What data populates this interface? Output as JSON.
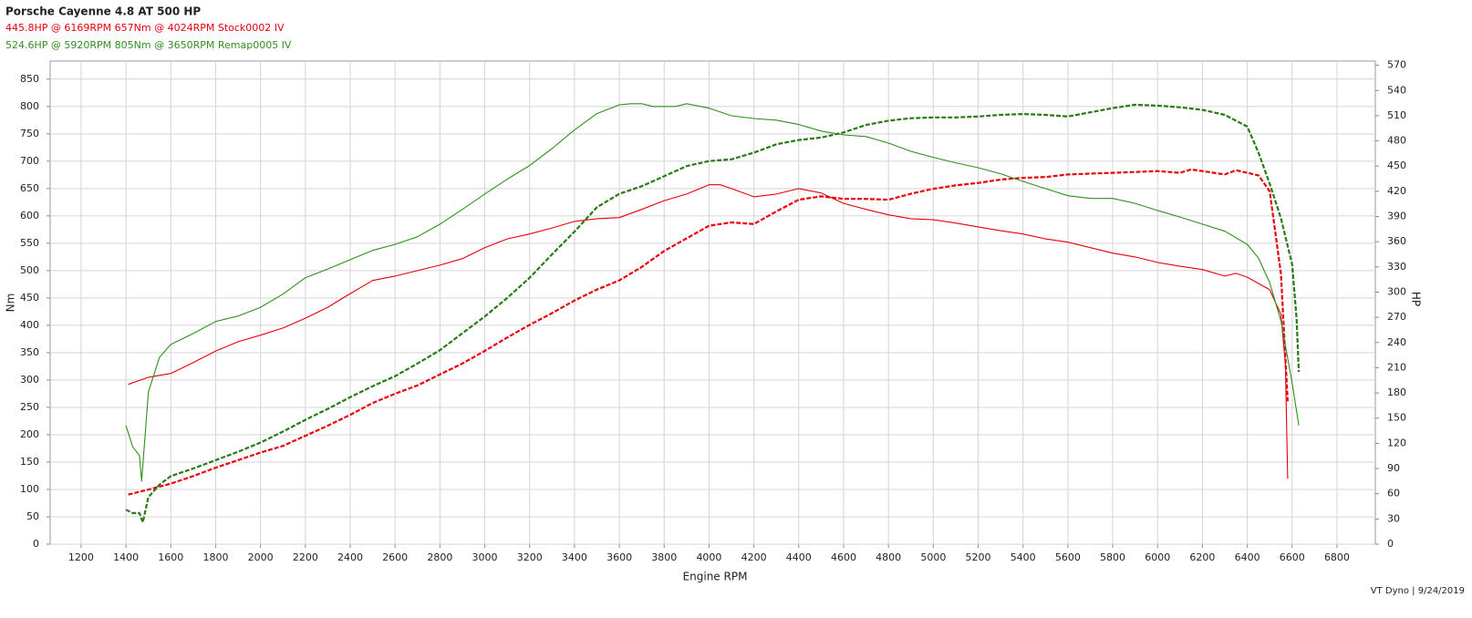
{
  "chart_data": {
    "type": "line",
    "title": "Porsche Cayenne 4.8 AT 500 HP",
    "annotations": [
      {
        "text": "445.8HP @  6169RPM  657Nm @ 4024RPM  Stock0002 IV",
        "color": "#e8000b"
      },
      {
        "text": "524.6HP @  5920RPM  805Nm @ 3650RPM  Remap0005 IV",
        "color": "#2f8f1f"
      }
    ],
    "x_label": "Engine RPM",
    "y_label": "Nm",
    "y2_label": "HP",
    "footer": "VT Dyno | 9/24/2019",
    "grid": true,
    "xlim": [
      1062,
      6971
    ],
    "ylim": [
      0,
      883
    ],
    "y2lim": [
      0,
      575
    ],
    "xticks": [
      1200,
      1400,
      1600,
      1800,
      2000,
      2200,
      2400,
      2600,
      2800,
      3000,
      3200,
      3400,
      3600,
      3800,
      4000,
      4200,
      4400,
      4600,
      4800,
      5000,
      5200,
      5400,
      5600,
      5800,
      6000,
      6200,
      6400,
      6600,
      6800
    ],
    "yticks": [
      0,
      50,
      100,
      150,
      200,
      250,
      300,
      350,
      400,
      450,
      500,
      550,
      600,
      650,
      700,
      750,
      800,
      850
    ],
    "y2ticks": [
      0,
      30,
      60,
      90,
      120,
      150,
      180,
      210,
      240,
      270,
      300,
      330,
      360,
      390,
      420,
      450,
      480,
      510,
      540,
      570
    ],
    "series": [
      {
        "color": "#e8000b",
        "dashed": false,
        "axis": "y",
        "x": [
          1410,
          1500,
          1600,
          1700,
          1800,
          1900,
          2000,
          2100,
          2200,
          2300,
          2400,
          2500,
          2600,
          2700,
          2800,
          2900,
          3000,
          3100,
          3200,
          3300,
          3400,
          3500,
          3600,
          3700,
          3800,
          3900,
          4000,
          4050,
          4100,
          4200,
          4300,
          4400,
          4500,
          4600,
          4700,
          4800,
          4900,
          5000,
          5100,
          5200,
          5300,
          5400,
          5500,
          5600,
          5700,
          5800,
          5900,
          6000,
          6100,
          6200,
          6300,
          6350,
          6400,
          6500,
          6550,
          6570,
          6580
        ],
        "values": [
          292,
          305,
          312,
          332,
          353,
          370,
          382,
          395,
          413,
          433,
          458,
          482,
          490,
          500,
          510,
          522,
          542,
          558,
          567,
          578,
          590,
          595,
          597,
          612,
          628,
          640,
          657,
          657,
          650,
          635,
          640,
          650,
          642,
          623,
          612,
          602,
          595,
          593,
          587,
          580,
          573,
          567,
          558,
          552,
          542,
          532,
          525,
          515,
          508,
          502,
          490,
          495,
          488,
          465,
          420,
          328,
          120
        ]
      },
      {
        "color": "#e8000b",
        "dashed": true,
        "axis": "y2",
        "x": [
          1410,
          1500,
          1600,
          1700,
          1800,
          1900,
          2000,
          2100,
          2200,
          2300,
          2400,
          2500,
          2600,
          2700,
          2800,
          2900,
          3000,
          3100,
          3200,
          3300,
          3400,
          3500,
          3600,
          3700,
          3800,
          3900,
          4000,
          4100,
          4200,
          4300,
          4400,
          4500,
          4600,
          4700,
          4800,
          4900,
          5000,
          5100,
          5200,
          5300,
          5400,
          5500,
          5600,
          5700,
          5800,
          5900,
          6000,
          6100,
          6150,
          6200,
          6300,
          6350,
          6400,
          6450,
          6500,
          6550,
          6580
        ],
        "values": [
          59,
          65,
          72,
          81,
          91,
          100,
          109,
          117,
          129,
          141,
          154,
          168,
          179,
          189,
          202,
          215,
          230,
          246,
          261,
          275,
          290,
          303,
          314,
          330,
          349,
          364,
          379,
          383,
          381,
          396,
          410,
          414,
          411,
          411,
          410,
          417,
          423,
          427,
          430,
          434,
          436,
          437,
          440,
          441,
          442,
          443,
          444,
          442,
          446,
          444,
          440,
          445,
          442,
          439,
          420,
          322,
          170
        ]
      },
      {
        "color": "#2f8f1f",
        "dashed": false,
        "axis": "y",
        "x": [
          1400,
          1430,
          1460,
          1470,
          1500,
          1550,
          1600,
          1700,
          1800,
          1900,
          2000,
          2100,
          2200,
          2300,
          2400,
          2500,
          2600,
          2700,
          2800,
          2900,
          3000,
          3100,
          3200,
          3300,
          3400,
          3500,
          3600,
          3650,
          3700,
          3750,
          3850,
          3900,
          4000,
          4100,
          4200,
          4300,
          4400,
          4500,
          4600,
          4700,
          4800,
          4900,
          5000,
          5100,
          5200,
          5300,
          5400,
          5500,
          5600,
          5700,
          5800,
          5900,
          6000,
          6100,
          6200,
          6300,
          6400,
          6450,
          6500,
          6550,
          6600,
          6630
        ],
        "values": [
          217,
          178,
          162,
          115,
          278,
          342,
          365,
          385,
          407,
          417,
          433,
          457,
          487,
          503,
          520,
          537,
          548,
          562,
          585,
          612,
          640,
          667,
          692,
          723,
          757,
          787,
          803,
          805,
          805,
          800,
          800,
          805,
          797,
          783,
          778,
          775,
          767,
          755,
          748,
          745,
          733,
          718,
          707,
          697,
          688,
          677,
          663,
          650,
          637,
          632,
          632,
          623,
          610,
          598,
          585,
          572,
          548,
          523,
          478,
          408,
          295,
          217
        ]
      },
      {
        "color": "#2a7a18",
        "dashed": true,
        "axis": "y2",
        "x": [
          1400,
          1430,
          1460,
          1475,
          1500,
          1550,
          1600,
          1700,
          1800,
          1900,
          2000,
          2100,
          2200,
          2300,
          2400,
          2500,
          2600,
          2700,
          2800,
          2900,
          3000,
          3100,
          3200,
          3300,
          3400,
          3500,
          3600,
          3700,
          3800,
          3900,
          4000,
          4100,
          4200,
          4300,
          4400,
          4500,
          4600,
          4700,
          4800,
          4900,
          5000,
          5100,
          5200,
          5300,
          5400,
          5500,
          5600,
          5700,
          5800,
          5900,
          6000,
          6100,
          6200,
          6300,
          6400,
          6450,
          6500,
          6550,
          6600,
          6620,
          6630
        ],
        "values": [
          41,
          37,
          37,
          26,
          56,
          71,
          81,
          90,
          100,
          110,
          121,
          134,
          148,
          161,
          175,
          188,
          200,
          215,
          231,
          251,
          271,
          293,
          317,
          345,
          372,
          401,
          417,
          426,
          438,
          450,
          456,
          458,
          466,
          476,
          481,
          484,
          490,
          499,
          504,
          507,
          508,
          508,
          509,
          511,
          512,
          511,
          509,
          514,
          519,
          523,
          522,
          520,
          517,
          511,
          497,
          466,
          429,
          388,
          333,
          268,
          205
        ]
      }
    ]
  }
}
